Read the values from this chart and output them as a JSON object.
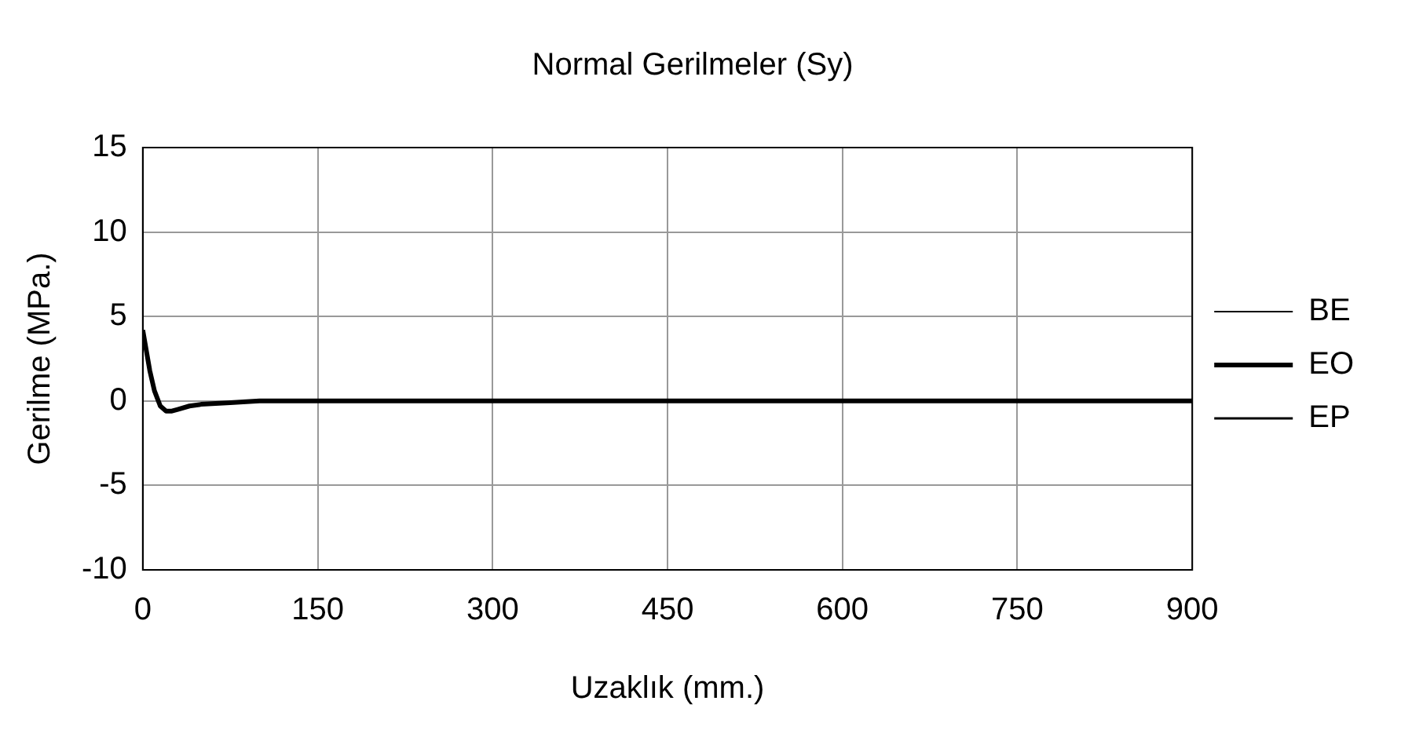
{
  "chart_data": {
    "type": "line",
    "title": "Normal Gerilmeler (Sy)",
    "xlabel": "Uzaklık (mm.)",
    "ylabel": "Gerilme (MPa.)",
    "x": [
      0,
      3,
      6,
      10,
      15,
      20,
      25,
      30,
      40,
      50,
      75,
      100,
      150,
      300,
      450,
      600,
      750,
      900
    ],
    "series": [
      {
        "name": "BE",
        "color": "#000000",
        "line_style": "solid",
        "values": [
          null,
          null,
          null,
          null,
          null,
          null,
          null,
          null,
          null,
          null,
          null,
          null,
          null,
          null,
          null,
          null,
          null,
          null
        ]
      },
      {
        "name": "EO",
        "color": "#000000",
        "line_style": "solid",
        "values": [
          4.2,
          3,
          1.8,
          0.6,
          -0.3,
          -0.6,
          -0.6,
          -0.5,
          -0.3,
          -0.2,
          -0.1,
          0,
          0,
          0,
          0,
          0,
          0,
          0
        ]
      },
      {
        "name": "EP",
        "color": "#000000",
        "line_style": "dashed",
        "values": [
          null,
          null,
          null,
          null,
          null,
          null,
          null,
          null,
          null,
          null,
          null,
          null,
          null,
          null,
          null,
          null,
          null,
          null
        ]
      }
    ],
    "xlim": [
      0,
      900
    ],
    "xticks": [
      0,
      150,
      300,
      450,
      600,
      750,
      900
    ],
    "ylim": [
      -10,
      15
    ],
    "yticks": [
      -10,
      -5,
      0,
      5,
      10,
      15
    ],
    "grid": true,
    "legend": "right",
    "marker": "none"
  }
}
